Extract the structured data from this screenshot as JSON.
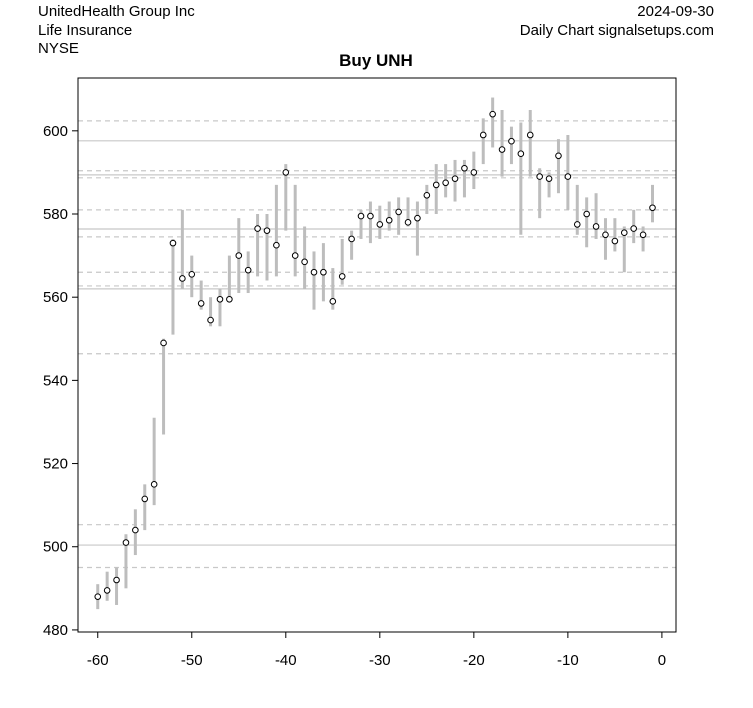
{
  "chart_data": {
    "type": "hilo",
    "title": "Buy UNH",
    "header_left": [
      "UnitedHealth Group Inc",
      "Life Insurance",
      "NYSE"
    ],
    "header_right": [
      "2024-09-30",
      "Daily Chart signalsetups.com"
    ],
    "x": [
      -60,
      -59,
      -58,
      -57,
      -56,
      -55,
      -54,
      -53,
      -52,
      -51,
      -50,
      -49,
      -48,
      -47,
      -46,
      -45,
      -44,
      -43,
      -42,
      -41,
      -40,
      -39,
      -38,
      -37,
      -36,
      -35,
      -34,
      -33,
      -32,
      -31,
      -30,
      -29,
      -28,
      -27,
      -26,
      -25,
      -24,
      -23,
      -22,
      -21,
      -20,
      -19,
      -18,
      -17,
      -16,
      -15,
      -14,
      -13,
      -12,
      -11,
      -10,
      -9,
      -8,
      -7,
      -6,
      -5,
      -4,
      -3,
      -2,
      -1
    ],
    "close": [
      488,
      489.5,
      492,
      501,
      504,
      511.5,
      515,
      549,
      573,
      564.5,
      565.5,
      558.5,
      554.5,
      559.5,
      559.5,
      570,
      566.5,
      576.5,
      576,
      572.5,
      590,
      570,
      568.5,
      566,
      566,
      559,
      565,
      574,
      579.5,
      579.5,
      577.5,
      578.5,
      580.5,
      578,
      579,
      584.5,
      587,
      587.5,
      588.5,
      591,
      590,
      599,
      604,
      595.5,
      597.5,
      594.5,
      599,
      589,
      588.5,
      594,
      589,
      577.5,
      580,
      577,
      575,
      573.5,
      575.5,
      576.5,
      575,
      581.5
    ],
    "low": [
      485,
      487,
      486,
      490,
      498,
      504,
      510,
      527,
      551,
      562,
      560,
      557,
      553,
      553,
      559,
      561,
      561,
      565,
      564,
      565,
      576,
      565,
      562,
      557,
      559,
      557,
      563,
      569,
      574,
      573,
      574,
      576,
      575,
      577,
      570,
      580,
      580,
      584,
      583,
      584,
      586,
      592,
      596,
      589,
      592,
      575,
      589,
      579,
      584,
      585,
      581,
      575,
      572,
      574,
      569,
      571,
      566,
      573,
      571,
      578
    ],
    "high": [
      491,
      494,
      495,
      503,
      509,
      515,
      531,
      550,
      574,
      581,
      570,
      564,
      560,
      562,
      570,
      579,
      571,
      580,
      580,
      587,
      592,
      587,
      577,
      571,
      573,
      567,
      574,
      576,
      581,
      583,
      582,
      583,
      584,
      584,
      583,
      587,
      592,
      592,
      593,
      593,
      595,
      603,
      608,
      605,
      601,
      602,
      605,
      591,
      590,
      598,
      599,
      587,
      584,
      585,
      579,
      579,
      577,
      581,
      577,
      587
    ],
    "solid_lines": [
      597.6,
      589.4,
      576.4,
      562,
      500.4
    ],
    "dashed_lines": [
      602.4,
      590.4,
      588.7,
      581,
      574.5,
      566,
      562.7,
      546.4,
      505.3,
      495
    ],
    "xlim": [
      -62.1,
      1.5
    ],
    "ylim": [
      479.5,
      612.7
    ],
    "xticks": [
      -60,
      -50,
      -40,
      -30,
      -20,
      -10,
      0
    ],
    "yticks": [
      480,
      500,
      520,
      540,
      560,
      580,
      600
    ]
  }
}
